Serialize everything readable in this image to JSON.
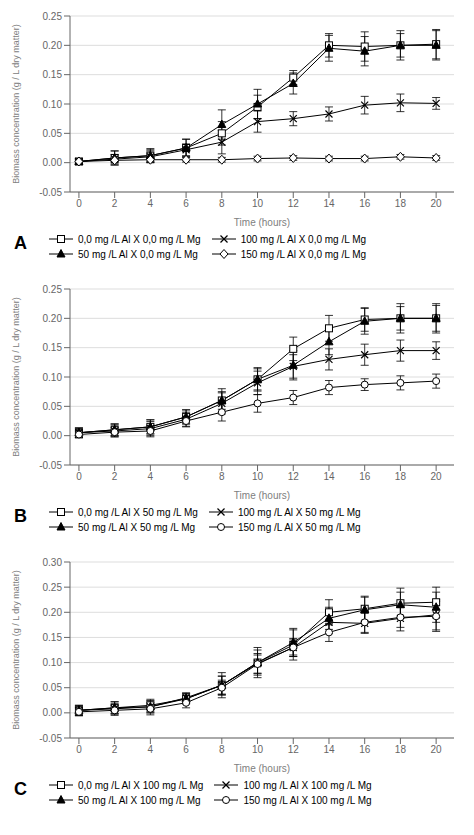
{
  "chart_data": [
    {
      "type": "line",
      "title": "A",
      "xlabel": "Time (hours)",
      "ylabel": "Biomass concentration (g / L dry matter)",
      "x": [
        0,
        2,
        4,
        6,
        8,
        10,
        12,
        14,
        16,
        18,
        20
      ],
      "xlim": [
        -0.5,
        21
      ],
      "xticks": [
        0,
        2,
        4,
        6,
        8,
        10,
        12,
        14,
        16,
        18,
        20
      ],
      "ylim": [
        -0.05,
        0.25
      ],
      "yticks": [
        -0.05,
        {
          "value": 0,
          "label": "0.00"
        },
        0.05,
        {
          "value": 0.1,
          "label": "0.10"
        },
        0.15,
        {
          "value": 0.2,
          "label": "0.20"
        },
        0.25
      ],
      "grid": "y",
      "legend": "bottom",
      "series": [
        {
          "name": "0,0 mg /L Al X 0,0 mg /L Mg",
          "marker": "s",
          "color": "#000000",
          "values": [
            0.002,
            0.008,
            0.012,
            0.025,
            0.05,
            0.095,
            0.145,
            0.2,
            0.198,
            0.2,
            0.202
          ],
          "errors": [
            0.005,
            0.012,
            0.012,
            0.015,
            0.02,
            0.02,
            0.012,
            0.02,
            0.025,
            0.02,
            0.025
          ]
        },
        {
          "name": "50 mg /L Al X 0,0 mg /L Mg",
          "marker": "^",
          "color": "#000000",
          "values": [
            0.002,
            0.008,
            0.012,
            0.025,
            0.065,
            0.1,
            0.135,
            0.195,
            0.19,
            0.2,
            0.2
          ],
          "errors": [
            0.005,
            0.012,
            0.01,
            0.015,
            0.025,
            0.025,
            0.018,
            0.022,
            0.025,
            0.025,
            0.025
          ]
        },
        {
          "name": "100 mg /L Al X 0,0 mg /L Mg",
          "marker": "x",
          "color": "#000000",
          "values": [
            0.002,
            0.006,
            0.01,
            0.022,
            0.035,
            0.07,
            0.075,
            0.083,
            0.098,
            0.102,
            0.101
          ],
          "errors": [
            0.004,
            0.008,
            0.01,
            0.01,
            0.02,
            0.018,
            0.012,
            0.012,
            0.015,
            0.015,
            0.01
          ]
        },
        {
          "name": "150 mg /L Al X 0,0 mg /L Mg",
          "marker": "D",
          "color": "#000000",
          "values": [
            0.002,
            0.004,
            0.005,
            0.005,
            0.005,
            0.007,
            0.008,
            0.007,
            0.007,
            0.01,
            0.008
          ],
          "errors": [
            0.003,
            0.004,
            0.004,
            0.004,
            0.004,
            0.004,
            0.004,
            0.004,
            0.004,
            0.004,
            0.004
          ]
        }
      ]
    },
    {
      "type": "line",
      "title": "B",
      "xlabel": "Time (hours)",
      "ylabel": "Biomass concentration (g / L dry matter)",
      "x": [
        0,
        2,
        4,
        6,
        8,
        10,
        12,
        14,
        16,
        18,
        20
      ],
      "xlim": [
        -0.5,
        21
      ],
      "xticks": [
        0,
        2,
        4,
        6,
        8,
        10,
        12,
        14,
        16,
        18,
        20
      ],
      "ylim": [
        -0.05,
        0.25
      ],
      "yticks": [
        -0.05,
        {
          "value": 0,
          "label": "0.00"
        },
        0.05,
        {
          "value": 0.1,
          "label": "0.10"
        },
        0.15,
        {
          "value": 0.2,
          "label": "0.20"
        },
        0.25
      ],
      "grid": "y",
      "legend": "bottom",
      "series": [
        {
          "name": "0,0 mg /L Al X 50 mg /L Mg",
          "marker": "s",
          "color": "#000000",
          "values": [
            0.005,
            0.01,
            0.015,
            0.032,
            0.06,
            0.096,
            0.148,
            0.183,
            0.198,
            0.2,
            0.2
          ],
          "errors": [
            0.008,
            0.01,
            0.012,
            0.012,
            0.015,
            0.018,
            0.02,
            0.022,
            0.02,
            0.025,
            0.025
          ]
        },
        {
          "name": "50 mg /L Al X 50 mg /L Mg",
          "marker": "^",
          "color": "#000000",
          "values": [
            0.005,
            0.01,
            0.015,
            0.032,
            0.06,
            0.096,
            0.12,
            0.16,
            0.195,
            0.2,
            0.2
          ],
          "errors": [
            0.008,
            0.01,
            0.012,
            0.012,
            0.02,
            0.02,
            0.025,
            0.022,
            0.022,
            0.02,
            0.022
          ]
        },
        {
          "name": "100 mg /L Al X 50 mg /L Mg",
          "marker": "x",
          "color": "#000000",
          "values": [
            0.005,
            0.008,
            0.012,
            0.028,
            0.055,
            0.09,
            0.118,
            0.13,
            0.138,
            0.145,
            0.145
          ],
          "errors": [
            0.008,
            0.01,
            0.012,
            0.012,
            0.018,
            0.02,
            0.02,
            0.018,
            0.018,
            0.018,
            0.015
          ]
        },
        {
          "name": "150 mg /L Al X 50 mg /L Mg",
          "marker": "o",
          "color": "#000000",
          "values": [
            0.002,
            0.006,
            0.008,
            0.025,
            0.04,
            0.055,
            0.065,
            0.082,
            0.087,
            0.09,
            0.093
          ],
          "errors": [
            0.006,
            0.008,
            0.01,
            0.01,
            0.015,
            0.015,
            0.012,
            0.012,
            0.01,
            0.012,
            0.012
          ]
        }
      ]
    },
    {
      "type": "line",
      "title": "C",
      "xlabel": "Time (hours)",
      "ylabel": "Biomass concentration (g / L dry matter)",
      "x": [
        0,
        2,
        4,
        6,
        8,
        10,
        12,
        14,
        16,
        18,
        20
      ],
      "xlim": [
        -0.5,
        21
      ],
      "xticks": [
        0,
        2,
        4,
        6,
        8,
        10,
        12,
        14,
        16,
        18,
        20
      ],
      "ylim": [
        -0.05,
        0.3
      ],
      "yticks": [
        -0.05,
        {
          "value": 0,
          "label": "0.00"
        },
        0.05,
        {
          "value": 0.1,
          "label": "0.10"
        },
        0.15,
        {
          "value": 0.2,
          "label": "0.20"
        },
        0.25,
        {
          "value": 0.3,
          "label": "0.30"
        }
      ],
      "grid": "y",
      "legend": "bottom",
      "series": [
        {
          "name": "0,0 mg /L Al X 100 mg /L Mg",
          "marker": "s",
          "color": "#000000",
          "values": [
            0.005,
            0.01,
            0.015,
            0.028,
            0.055,
            0.1,
            0.135,
            0.2,
            0.207,
            0.218,
            0.22
          ],
          "errors": [
            0.01,
            0.012,
            0.012,
            0.01,
            0.025,
            0.03,
            0.03,
            0.025,
            0.025,
            0.03,
            0.03
          ]
        },
        {
          "name": "50 mg /L Al X 100 mg /L Mg",
          "marker": "^",
          "color": "#000000",
          "values": [
            0.005,
            0.01,
            0.012,
            0.028,
            0.055,
            0.1,
            0.14,
            0.188,
            0.205,
            0.215,
            0.21
          ],
          "errors": [
            0.01,
            0.012,
            0.012,
            0.01,
            0.018,
            0.025,
            0.028,
            0.022,
            0.025,
            0.025,
            0.03
          ]
        },
        {
          "name": "100 mg /L Al X 100 mg /L Mg",
          "marker": "x",
          "color": "#000000",
          "values": [
            0.005,
            0.008,
            0.012,
            0.03,
            0.055,
            0.098,
            0.13,
            0.18,
            0.178,
            0.188,
            0.195
          ],
          "errors": [
            0.008,
            0.01,
            0.012,
            0.01,
            0.018,
            0.02,
            0.015,
            0.022,
            0.02,
            0.025,
            0.03
          ]
        },
        {
          "name": "150 mg /L Al X 100 mg /L Mg",
          "marker": "o",
          "color": "#000000",
          "values": [
            0.002,
            0.005,
            0.008,
            0.02,
            0.05,
            0.097,
            0.13,
            0.16,
            0.18,
            0.19,
            0.192
          ],
          "errors": [
            0.008,
            0.01,
            0.012,
            0.01,
            0.015,
            0.018,
            0.018,
            0.018,
            0.02,
            0.02,
            0.03
          ]
        }
      ]
    }
  ]
}
